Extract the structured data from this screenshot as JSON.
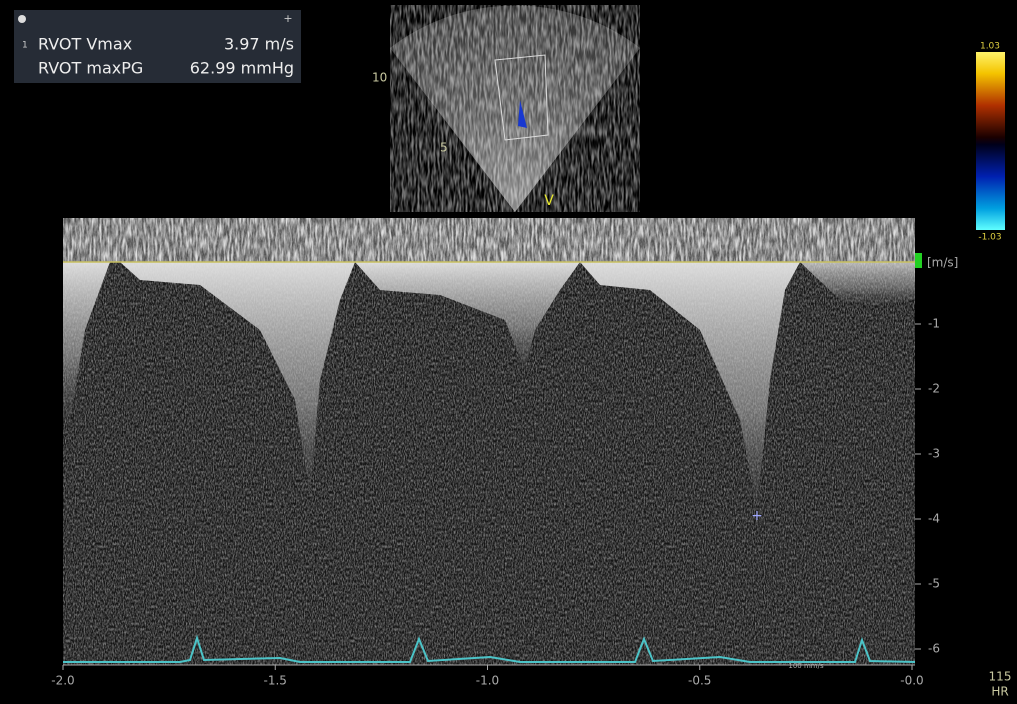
{
  "measurements": [
    {
      "label": "RVOT Vmax",
      "value": "3.97 m/s"
    },
    {
      "label": "RVOT maxPG",
      "value": "62.99 mmHg"
    }
  ],
  "sector": {
    "depth_labels": [
      "10",
      "5"
    ],
    "view_marker": "V"
  },
  "color_scale": {
    "max": 1.03,
    "min": -1.03
  },
  "doppler": {
    "unit": "[m/s]",
    "yticks": [
      -1,
      -2,
      -3,
      -4,
      -5,
      -6
    ],
    "xticks": [
      {
        "value": -2,
        "label": "-2.0"
      },
      {
        "value": -1.5,
        "label": "-1.5"
      },
      {
        "value": -1,
        "label": "-1.0"
      },
      {
        "value": -0.5,
        "label": "-0.5"
      },
      {
        "value": 0,
        "label": "-0.0"
      }
    ],
    "sweep_speed": "100 mm/s"
  },
  "heart_rate": {
    "value": "115",
    "label": "HR"
  }
}
